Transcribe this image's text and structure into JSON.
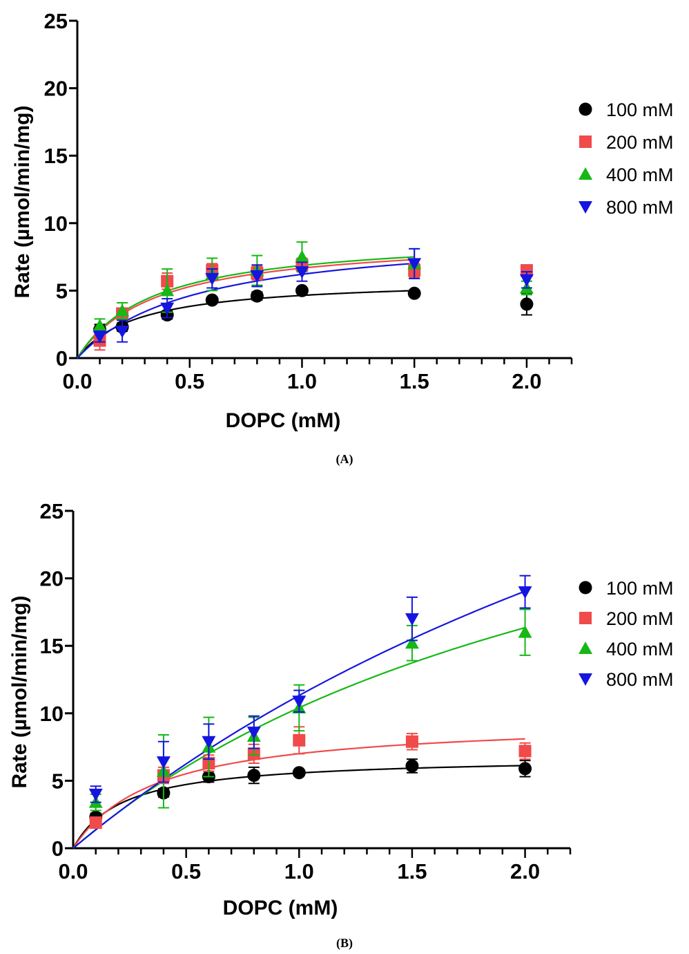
{
  "chart_data": [
    {
      "panel_label": "(A)",
      "type": "scatter",
      "xlabel": "DOPC (mM)",
      "ylabel": "Rate (µmol/min/mg)",
      "xlim": [
        0,
        2.2
      ],
      "ylim": [
        0,
        25
      ],
      "x_ticks": [
        0.0,
        0.5,
        1.0,
        1.5,
        2.0
      ],
      "x_tick_labels": [
        "0.0",
        "0.5",
        "1.0",
        "1.5",
        "2.0"
      ],
      "y_ticks": [
        0,
        5,
        10,
        15,
        20,
        25
      ],
      "y_tick_labels": [
        "0",
        "5",
        "10",
        "15",
        "20",
        "25"
      ],
      "legend_position": "right",
      "series": [
        {
          "name": "100 mM",
          "marker": "circle",
          "color": "#000000",
          "x": [
            0.1,
            0.2,
            0.4,
            0.6,
            0.8,
            1.0,
            1.5,
            2.0
          ],
          "y": [
            2.1,
            2.3,
            3.2,
            4.3,
            4.6,
            5.0,
            4.8,
            4.0
          ],
          "err": [
            0.4,
            0.3,
            0.3,
            0.2,
            0.3,
            0.2,
            0.2,
            0.8
          ],
          "fit": {
            "vmax": 5.9,
            "km": 0.27,
            "x_end": 1.5
          }
        },
        {
          "name": "200 mM",
          "marker": "square",
          "color": "#f04a4a",
          "x": [
            0.1,
            0.2,
            0.4,
            0.6,
            0.8,
            1.0,
            1.5,
            2.0
          ],
          "y": [
            1.3,
            3.3,
            5.7,
            6.5,
            6.3,
            6.9,
            6.5,
            6.5
          ],
          "err": [
            0.7,
            0.4,
            0.6,
            0.5,
            0.5,
            0.5,
            0.5,
            0.4
          ],
          "fit": {
            "vmax": 9.0,
            "km": 0.35,
            "x_end": 1.5
          }
        },
        {
          "name": "400 mM",
          "marker": "triangle-up",
          "color": "#15b815",
          "x": [
            0.1,
            0.2,
            0.4,
            0.6,
            0.8,
            1.0,
            1.5,
            2.0
          ],
          "y": [
            2.4,
            3.5,
            5.0,
            6.2,
            6.5,
            7.5,
            7.0,
            5.2
          ],
          "err": [
            0.5,
            0.6,
            1.6,
            1.2,
            1.1,
            1.1,
            1.1,
            0.5
          ],
          "fit": {
            "vmax": 9.2,
            "km": 0.34,
            "x_end": 1.5
          }
        },
        {
          "name": "800 mM",
          "marker": "triangle-down",
          "color": "#1515e0",
          "x": [
            0.1,
            0.2,
            0.4,
            0.6,
            0.8,
            1.0,
            1.5,
            2.0
          ],
          "y": [
            1.6,
            2.0,
            3.7,
            5.9,
            6.1,
            6.4,
            7.0,
            5.8
          ],
          "err": [
            0.4,
            0.8,
            0.7,
            0.7,
            0.8,
            0.7,
            1.1,
            0.6
          ],
          "fit": {
            "vmax": 9.5,
            "km": 0.53,
            "x_end": 1.5
          }
        }
      ]
    },
    {
      "panel_label": "(B)",
      "type": "scatter",
      "xlabel": "DOPC (mM)",
      "ylabel": "Rate (µmol/min/mg)",
      "xlim": [
        0,
        2.2
      ],
      "ylim": [
        0,
        25
      ],
      "x_ticks": [
        0.0,
        0.5,
        1.0,
        1.5,
        2.0
      ],
      "x_tick_labels": [
        "0.0",
        "0.5",
        "1.0",
        "1.5",
        "2.0"
      ],
      "y_ticks": [
        0,
        5,
        10,
        15,
        20,
        25
      ],
      "y_tick_labels": [
        "0",
        "5",
        "10",
        "15",
        "20",
        "25"
      ],
      "legend_position": "right",
      "series": [
        {
          "name": "100 mM",
          "marker": "circle",
          "color": "#000000",
          "x": [
            0.1,
            0.4,
            0.6,
            0.8,
            1.0,
            1.5,
            2.0
          ],
          "y": [
            2.3,
            4.1,
            5.3,
            5.4,
            5.6,
            6.1,
            5.9
          ],
          "err": [
            0.3,
            0.3,
            0.4,
            0.6,
            0.2,
            0.5,
            0.6
          ],
          "fit": {
            "vmax": 6.8,
            "km": 0.22,
            "x_end": 2.0
          }
        },
        {
          "name": "200 mM",
          "marker": "square",
          "color": "#f04a4a",
          "x": [
            0.1,
            0.4,
            0.6,
            0.8,
            1.0,
            1.5,
            2.0
          ],
          "y": [
            1.9,
            5.4,
            6.3,
            7.0,
            8.0,
            7.9,
            7.2
          ],
          "err": [
            0.4,
            0.6,
            0.6,
            0.7,
            1.0,
            0.6,
            0.6
          ],
          "fit": {
            "vmax": 9.6,
            "km": 0.37,
            "x_end": 2.0
          }
        },
        {
          "name": "400 mM",
          "marker": "triangle-up",
          "color": "#15b815",
          "x": [
            0.1,
            0.4,
            0.6,
            0.8,
            1.0,
            1.5,
            2.0
          ],
          "y": [
            3.4,
            5.7,
            7.5,
            8.3,
            10.4,
            15.2,
            16.0
          ],
          "err": [
            0.6,
            2.7,
            2.2,
            1.4,
            1.7,
            1.3,
            1.7
          ],
          "fit": {
            "vmax": 38.0,
            "km": 2.65,
            "x_end": 2.0
          }
        },
        {
          "name": "800 mM",
          "marker": "triangle-down",
          "color": "#1515e0",
          "x": [
            0.1,
            0.4,
            0.6,
            0.8,
            1.0,
            1.5,
            2.0
          ],
          "y": [
            4.0,
            6.4,
            7.9,
            8.6,
            10.9,
            17.0,
            19.0
          ],
          "err": [
            0.6,
            1.5,
            1.3,
            1.2,
            0.8,
            1.6,
            1.2
          ],
          "fit": {
            "vmax": 60.0,
            "km": 4.3,
            "x_end": 2.0
          }
        }
      ]
    }
  ]
}
